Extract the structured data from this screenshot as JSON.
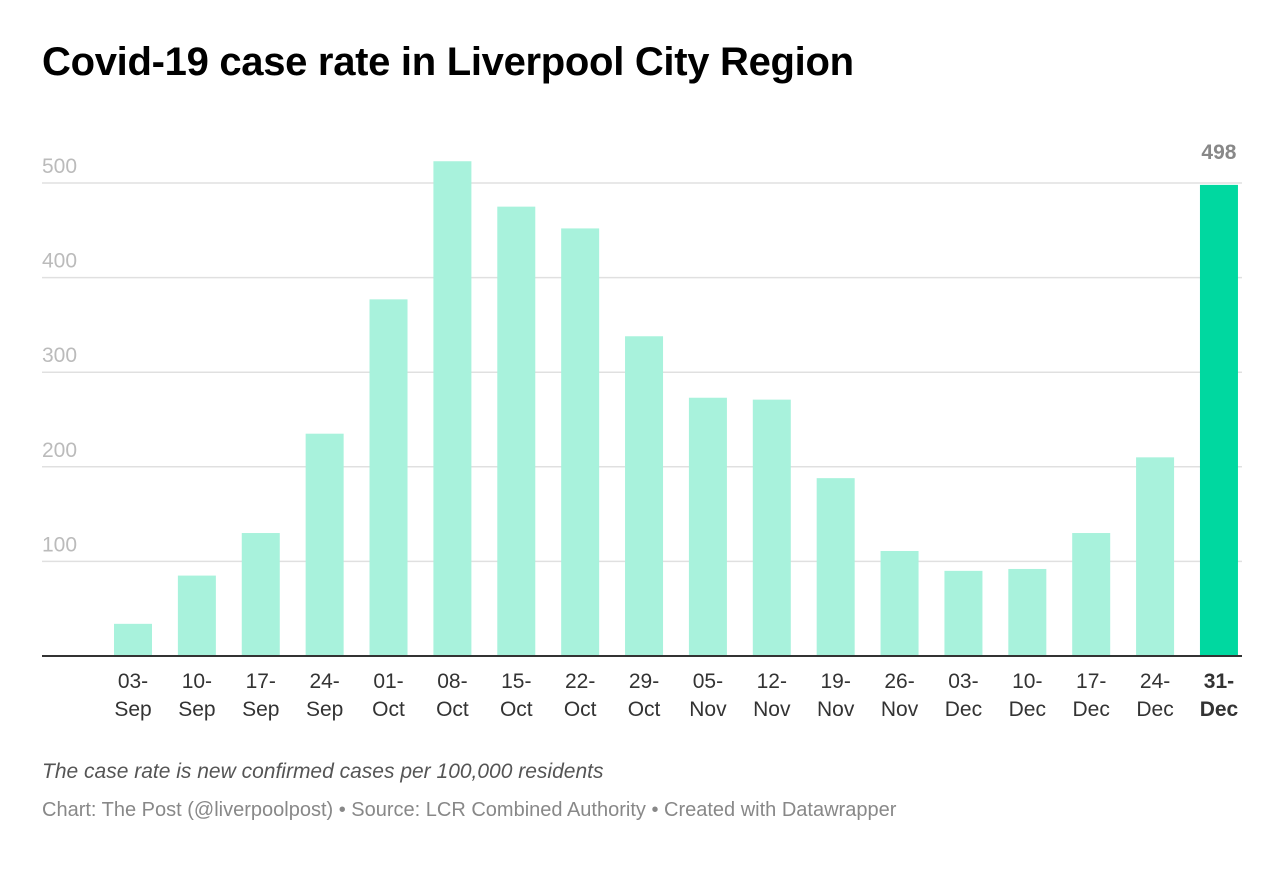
{
  "title": "Covid-19 case rate in Liverpool City Region",
  "notes": "The case rate is new confirmed cases per 100,000 residents",
  "footer": {
    "chart_credit": "Chart: The Post (@liverpoolpost)",
    "separator": " • ",
    "source": "Source: LCR Combined Authority",
    "created_with": "Created with Datawrapper"
  },
  "colors": {
    "bar": "#a8f2dc",
    "highlight_bar": "#00d8a0",
    "gridline": "#e0e0e0",
    "axis_line": "#333333",
    "tick_label": "#bbbbbb",
    "category_label": "#333333",
    "highlight_label": "#333333",
    "value_label": "#888888"
  },
  "chart_data": {
    "type": "bar",
    "categories": [
      "03-Sep",
      "10-Sep",
      "17-Sep",
      "24-Sep",
      "01-Oct",
      "08-Oct",
      "15-Oct",
      "22-Oct",
      "29-Oct",
      "05-Nov",
      "12-Nov",
      "19-Nov",
      "26-Nov",
      "03-Dec",
      "10-Dec",
      "17-Dec",
      "24-Dec",
      "31-Dec"
    ],
    "category_lines": [
      [
        "03-",
        "Sep"
      ],
      [
        "10-",
        "Sep"
      ],
      [
        "17-",
        "Sep"
      ],
      [
        "24-",
        "Sep"
      ],
      [
        "01-",
        "Oct"
      ],
      [
        "08-",
        "Oct"
      ],
      [
        "15-",
        "Oct"
      ],
      [
        "22-",
        "Oct"
      ],
      [
        "29-",
        "Oct"
      ],
      [
        "05-",
        "Nov"
      ],
      [
        "12-",
        "Nov"
      ],
      [
        "19-",
        "Nov"
      ],
      [
        "26-",
        "Nov"
      ],
      [
        "03-",
        "Dec"
      ],
      [
        "10-",
        "Dec"
      ],
      [
        "17-",
        "Dec"
      ],
      [
        "24-",
        "Dec"
      ],
      [
        "31-",
        "Dec"
      ]
    ],
    "values": [
      34,
      85,
      130,
      235,
      377,
      523,
      475,
      452,
      338,
      273,
      271,
      188,
      111,
      90,
      92,
      130,
      210,
      498
    ],
    "highlight_index": 17,
    "highlight_value_label": "498",
    "ylim": [
      0,
      500
    ],
    "yticks": [
      100,
      200,
      300,
      400,
      500
    ],
    "ytick_labels": [
      "100",
      "200",
      "300",
      "400",
      "500"
    ],
    "grid": true,
    "xlabel": "",
    "ylabel": ""
  }
}
